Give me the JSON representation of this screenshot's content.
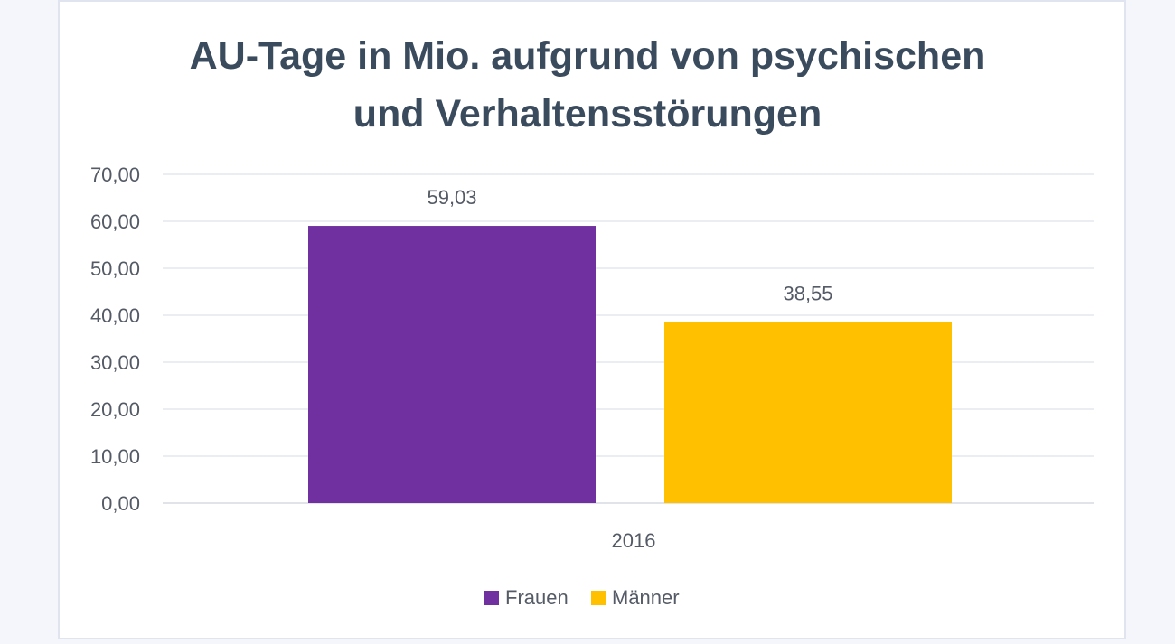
{
  "chart_data": {
    "type": "bar",
    "title_lines": [
      "AU-Tage in Mio. aufgrund von psychischen",
      "und Verhaltensstörungen"
    ],
    "categories": [
      "2016"
    ],
    "series": [
      {
        "name": "Frauen",
        "values": [
          59.03
        ],
        "label": "59,03",
        "color": "#7030a0"
      },
      {
        "name": "Männer",
        "values": [
          38.55
        ],
        "label": "38,55",
        "color": "#ffc000"
      }
    ],
    "ylim": [
      0,
      70
    ],
    "yticks": [
      {
        "value": 0,
        "label": "0,00"
      },
      {
        "value": 10,
        "label": "10,00"
      },
      {
        "value": 20,
        "label": "20,00"
      },
      {
        "value": 30,
        "label": "30,00"
      },
      {
        "value": 40,
        "label": "40,00"
      },
      {
        "value": 50,
        "label": "50,00"
      },
      {
        "value": 60,
        "label": "60,00"
      },
      {
        "value": 70,
        "label": "70,00"
      }
    ],
    "grid": true,
    "legend_position": "bottom",
    "xlabel": "",
    "ylabel": ""
  }
}
